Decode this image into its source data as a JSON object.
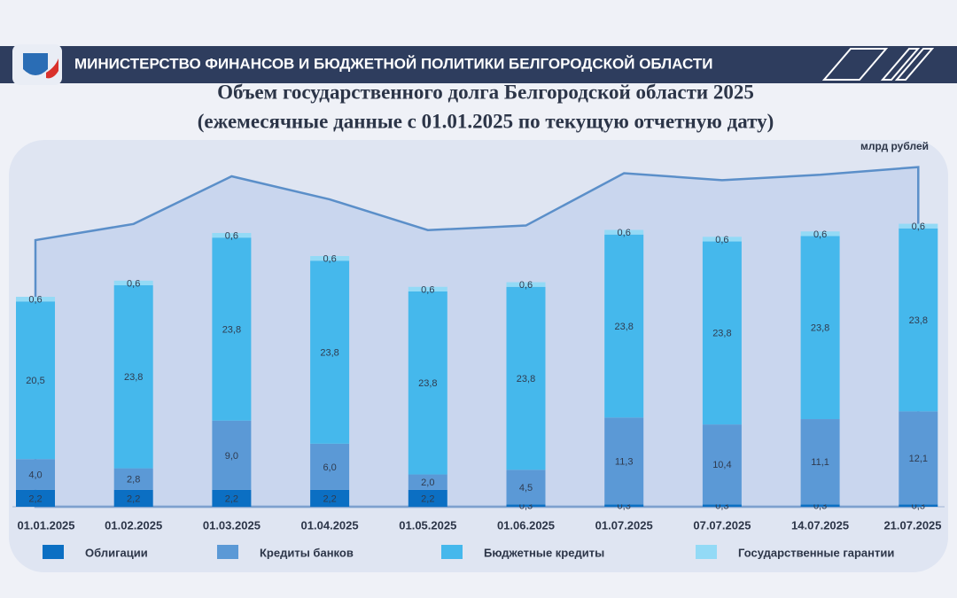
{
  "header": {
    "ministry": "МИНИСТЕРСТВО ФИНАНСОВ И БЮДЖЕТНОЙ ПОЛИТИКИ БЕЛГОРОДСКОЙ ОБЛАСТИ"
  },
  "chart_data": {
    "type": "bar",
    "stacked": true,
    "title": "Объем государственного долга Белгородской области 2025",
    "subtitle": "(ежемесячные данные с 01.01.2025 по текущую отчетную дату)",
    "unit": "млрд рублей",
    "categories": [
      "01.01.2025",
      "01.02.2025",
      "01.03.2025",
      "01.04.2025",
      "01.05.2025",
      "01.06.2025",
      "01.07.2025",
      "07.07.2025",
      "14.07.2025",
      "21.07.2025"
    ],
    "series": [
      {
        "name": "Облигации",
        "color": "#0b6fc3",
        "values": [
          2.2,
          2.2,
          2.2,
          2.2,
          2.2,
          0.3,
          0.3,
          0.3,
          0.3,
          0.3
        ],
        "value_labels": [
          "2,2",
          "2,2",
          "2,2",
          "2,2",
          "2,2",
          "0,3",
          "0,3",
          "0,3",
          "0,3",
          "0,3"
        ]
      },
      {
        "name": "Кредиты банков",
        "color": "#5b99d6",
        "values": [
          4.0,
          2.8,
          9.0,
          6.0,
          2.0,
          4.5,
          11.3,
          10.4,
          11.1,
          12.1
        ],
        "value_labels": [
          "4,0",
          "2,8",
          "9,0",
          "6,0",
          "2,0",
          "4,5",
          "11,3",
          "10,4",
          "11,1",
          "12,1"
        ]
      },
      {
        "name": "Бюджетные кредиты",
        "color": "#45b8ec",
        "values": [
          20.5,
          23.8,
          23.8,
          23.8,
          23.8,
          23.8,
          23.8,
          23.8,
          23.8,
          23.8
        ],
        "value_labels": [
          "20,5",
          "23,8",
          "23,8",
          "23,8",
          "23,8",
          "23,8",
          "23,8",
          "23,8",
          "23,8",
          "23,8"
        ]
      },
      {
        "name": "Государственные гарантии",
        "color": "#93daf6",
        "values": [
          0.6,
          0.6,
          0.6,
          0.6,
          0.6,
          0.6,
          0.6,
          0.6,
          0.6,
          0.6
        ],
        "value_labels": [
          "0,6",
          "0,6",
          "0,6",
          "0,6",
          "0,6",
          "0,6",
          "0,6",
          "0,6",
          "0,6",
          "0,6"
        ]
      }
    ]
  }
}
